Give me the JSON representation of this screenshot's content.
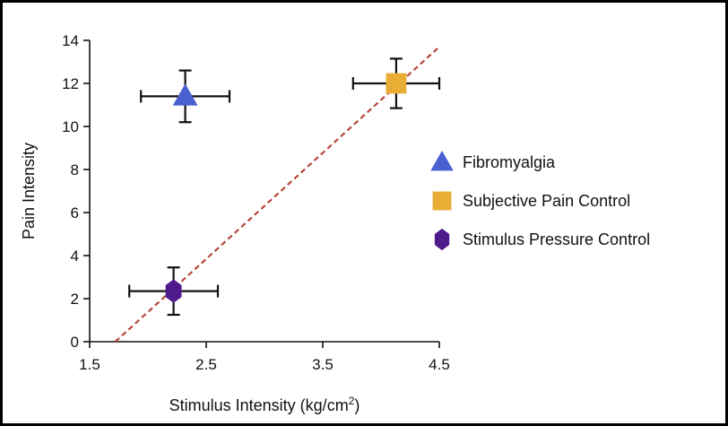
{
  "chart_data": {
    "type": "scatter",
    "xlabel": "Stimulus Intensity (kg/cm",
    "xlabel_superscript": "2",
    "xlabel_suffix": ")",
    "ylabel": "Pain Intensity",
    "xlim": [
      1.5,
      4.5
    ],
    "ylim": [
      0,
      14
    ],
    "x_ticks": [
      "1.5",
      "2.5",
      "3.5",
      "4.5"
    ],
    "y_ticks": [
      "0",
      "2",
      "4",
      "6",
      "8",
      "10",
      "12",
      "14"
    ],
    "grid": false,
    "legend_position": "right",
    "series": [
      {
        "name": "Fibromyalgia",
        "marker": "triangle",
        "color": "#4a5fd0",
        "x": 2.32,
        "y": 11.4,
        "x_err": 0.38,
        "y_err": 1.2
      },
      {
        "name": "Subjective Pain Control",
        "marker": "square",
        "color": "#e8ad35",
        "x": 4.13,
        "y": 12.0,
        "x_err": 0.37,
        "y_err": 1.15
      },
      {
        "name": "Stimulus Pressure Control",
        "marker": "hexagon",
        "color": "#4f1a8c",
        "x": 2.22,
        "y": 2.35,
        "x_err": 0.38,
        "y_err": 1.1
      }
    ],
    "fit_line": {
      "style": "dashed",
      "color": "#b5473c",
      "points": [
        [
          1.72,
          0
        ],
        [
          4.5,
          13.7
        ]
      ]
    }
  }
}
